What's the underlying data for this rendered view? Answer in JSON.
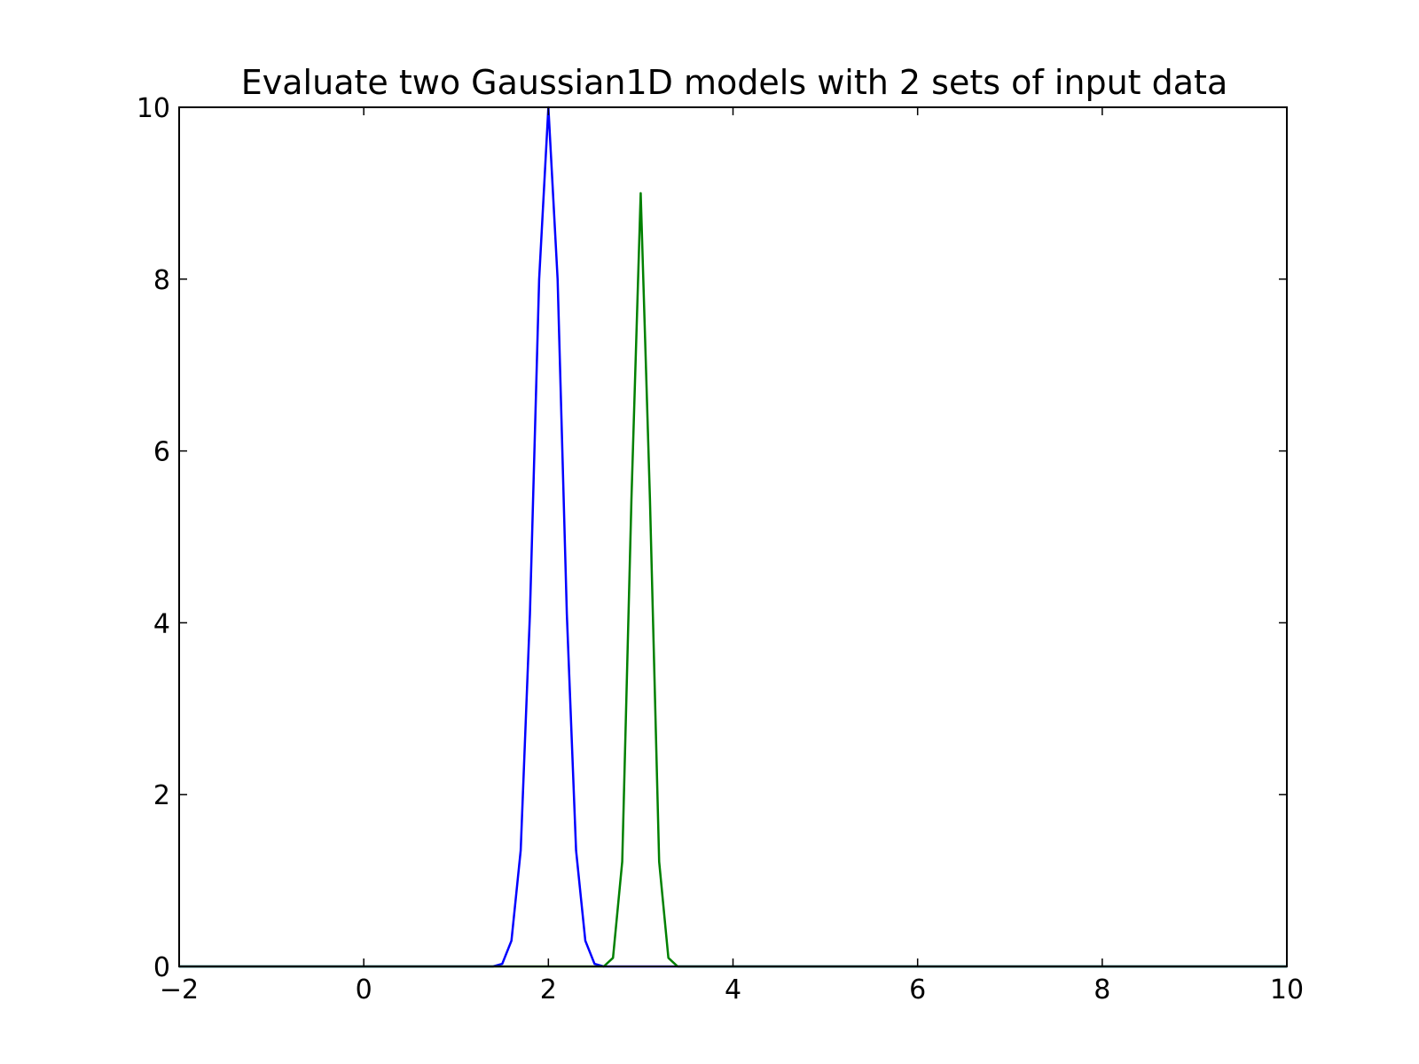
{
  "chart_data": {
    "type": "line",
    "title": "Evaluate two Gaussian1D models with 2 sets of input data",
    "xlabel": "",
    "ylabel": "",
    "xlim": [
      -2,
      10
    ],
    "ylim": [
      0,
      10
    ],
    "xticks": [
      -2,
      0,
      2,
      4,
      6,
      8,
      10
    ],
    "xtick_labels": [
      "−2",
      "0",
      "2",
      "4",
      "6",
      "8",
      "10"
    ],
    "yticks": [
      0,
      2,
      4,
      6,
      8,
      10
    ],
    "ytick_labels": [
      "0",
      "2",
      "4",
      "6",
      "8",
      "10"
    ],
    "grid": false,
    "series": [
      {
        "color": "#0000ff",
        "x": [
          -2.0,
          1.0,
          1.4,
          1.5,
          1.6,
          1.7,
          1.8,
          1.9,
          2.0,
          2.1,
          2.2,
          2.3,
          2.4,
          2.5,
          2.6,
          3.0,
          10.0
        ],
        "y": [
          0.0,
          0.0,
          0.0,
          0.03,
          0.3,
          1.35,
          4.1,
          8.0,
          10.0,
          8.0,
          4.1,
          1.35,
          0.3,
          0.03,
          0.0,
          0.0,
          0.0
        ]
      },
      {
        "color": "#008000",
        "x": [
          -2.0,
          2.5,
          2.6,
          2.7,
          2.8,
          2.9,
          3.0,
          3.1,
          3.2,
          3.3,
          3.4,
          4.0,
          10.0
        ],
        "y": [
          0.0,
          0.0,
          0.0,
          0.1,
          1.22,
          5.45,
          9.0,
          5.45,
          1.22,
          0.1,
          0.0,
          0.0,
          0.0
        ]
      }
    ]
  }
}
